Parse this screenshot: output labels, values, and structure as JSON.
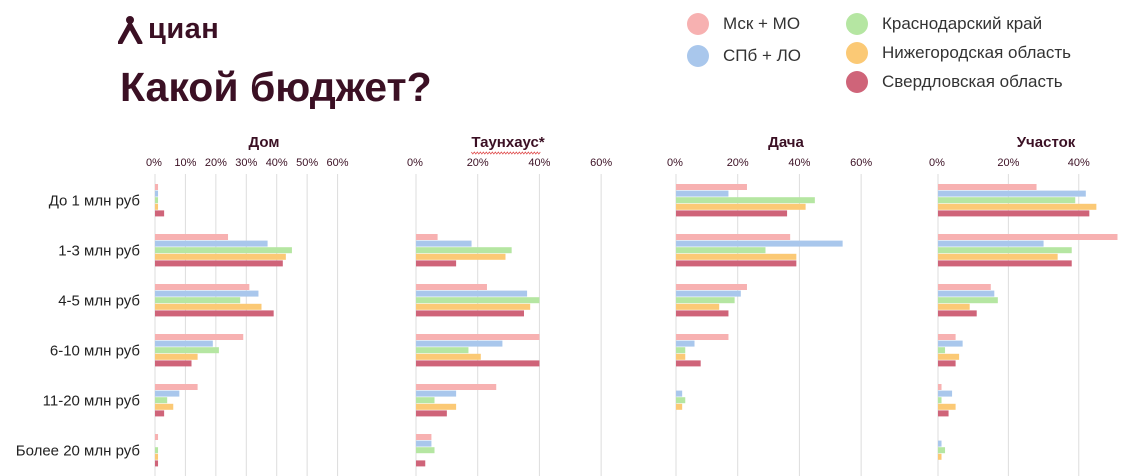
{
  "brand": {
    "name": "циан",
    "accent": "#3b1024"
  },
  "title": "Какой бюджет?",
  "chart_data": {
    "type": "bar",
    "orientation": "horizontal",
    "title": "Какой бюджет?",
    "categories": [
      "До 1 млн руб",
      "1-3 млн руб",
      "4-5 млн руб",
      "6-10 млн руб",
      "11-20 млн руб",
      "Более 20 млн руб"
    ],
    "legend": [
      {
        "name": "Мск + МО",
        "color": "#f7b1b1"
      },
      {
        "name": "СПб + ЛО",
        "color": "#a9c7ec"
      },
      {
        "name": "Краснодарский край",
        "color": "#b5e6a2"
      },
      {
        "name": "Нижегородская область",
        "color": "#fbc975"
      },
      {
        "name": "Свердловская область",
        "color": "#cf6479"
      }
    ],
    "legend_position": "top-right",
    "grid": true,
    "panels": [
      {
        "title": "Дом",
        "xlim": [
          0,
          70
        ],
        "ticks": [
          "0%",
          "10%",
          "20%",
          "30%",
          "40%",
          "50%",
          "60%"
        ],
        "series": [
          {
            "name": "Мск + МО",
            "values": [
              1,
              24,
              31,
              29,
              14,
              1
            ]
          },
          {
            "name": "СПб + ЛО",
            "values": [
              1,
              37,
              34,
              19,
              8,
              0
            ]
          },
          {
            "name": "Краснодарский край",
            "values": [
              1,
              45,
              28,
              21,
              4,
              1
            ]
          },
          {
            "name": "Нижегородская область",
            "values": [
              1,
              43,
              35,
              14,
              6,
              1
            ]
          },
          {
            "name": "Свердловская область",
            "values": [
              3,
              42,
              39,
              12,
              3,
              1
            ]
          }
        ]
      },
      {
        "title": "Таунхаус*",
        "xlim": [
          0,
          70
        ],
        "ticks": [
          "0%",
          "20%",
          "40%",
          "60%"
        ],
        "series": [
          {
            "name": "Мск + МО",
            "values": [
              0,
              7,
              23,
              40,
              26,
              5
            ]
          },
          {
            "name": "СПб + ЛО",
            "values": [
              0,
              18,
              36,
              28,
              13,
              5
            ]
          },
          {
            "name": "Краснодарский край",
            "values": [
              0,
              31,
              40,
              17,
              6,
              6
            ]
          },
          {
            "name": "Нижегородская область",
            "values": [
              0,
              29,
              37,
              21,
              13,
              0
            ]
          },
          {
            "name": "Свердловская область",
            "values": [
              0,
              13,
              35,
              40,
              10,
              3
            ]
          }
        ]
      },
      {
        "title": "Дача",
        "xlim": [
          0,
          70
        ],
        "ticks": [
          "0%",
          "20%",
          "40%",
          "60%"
        ],
        "series": [
          {
            "name": "Мск + МО",
            "values": [
              23,
              37,
              23,
              17,
              0,
              0
            ]
          },
          {
            "name": "СПб + ЛО",
            "values": [
              17,
              54,
              21,
              6,
              2,
              0
            ]
          },
          {
            "name": "Краснодарский край",
            "values": [
              45,
              29,
              19,
              3,
              3,
              0
            ]
          },
          {
            "name": "Нижегородская область",
            "values": [
              42,
              39,
              14,
              3,
              2,
              0
            ]
          },
          {
            "name": "Свердловская область",
            "values": [
              36,
              39,
              17,
              8,
              0,
              0
            ]
          }
        ]
      },
      {
        "title": "Участок",
        "xlim": [
          0,
          52
        ],
        "ticks": [
          "0%",
          "20%",
          "40%"
        ],
        "series": [
          {
            "name": "Мск + МО",
            "values": [
              28,
              51,
              15,
              5,
              1,
              0
            ]
          },
          {
            "name": "СПб + ЛО",
            "values": [
              42,
              30,
              16,
              7,
              4,
              1
            ]
          },
          {
            "name": "Краснодарский край",
            "values": [
              39,
              38,
              17,
              2,
              1,
              2
            ]
          },
          {
            "name": "Нижегородская область",
            "values": [
              45,
              34,
              9,
              6,
              5,
              1
            ]
          },
          {
            "name": "Свердловская область",
            "values": [
              43,
              38,
              11,
              5,
              3,
              0
            ]
          }
        ]
      }
    ]
  }
}
